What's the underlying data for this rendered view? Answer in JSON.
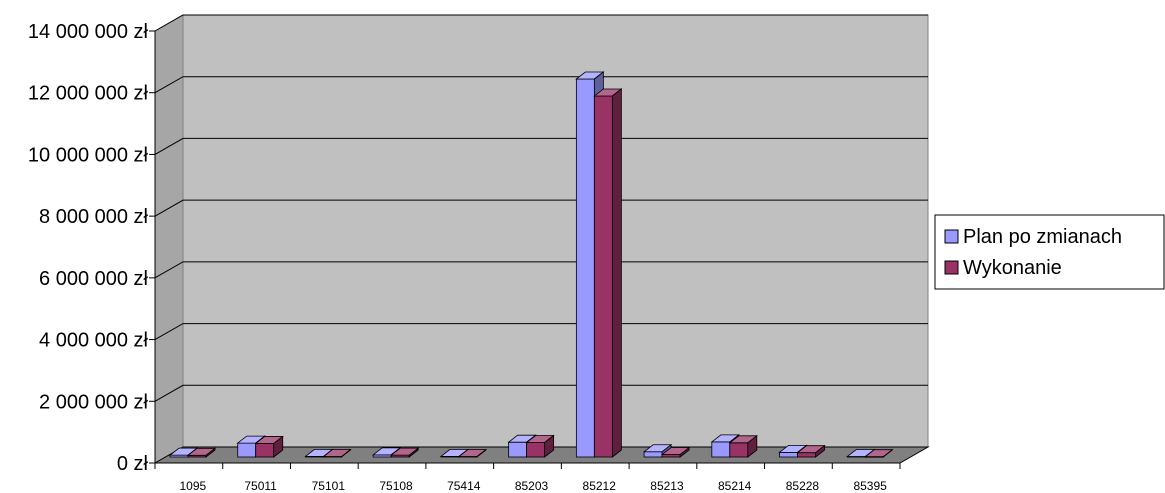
{
  "chart_data": {
    "type": "bar",
    "categories": [
      "1095",
      "75011",
      "75101",
      "75108",
      "75414",
      "85203",
      "85212",
      "85213",
      "85214",
      "85228",
      "85395"
    ],
    "series": [
      {
        "name": "Plan po zmianach",
        "color": "#9999ff",
        "values": [
          60000,
          450000,
          20000,
          70000,
          20000,
          480000,
          12250000,
          170000,
          490000,
          150000,
          15000
        ]
      },
      {
        "name": "Wykonanie",
        "color": "#993366",
        "values": [
          55000,
          440000,
          15000,
          60000,
          15000,
          470000,
          11700000,
          80000,
          460000,
          140000,
          10000
        ]
      }
    ],
    "y_ticks": [
      "0 zł",
      "2 000 000 zł",
      "4 000 000 zł",
      "6 000 000 zł",
      "8 000 000 zł",
      "10 000 000 zł",
      "12 000 000 zł",
      "14 000 000 zł"
    ],
    "ylim": [
      0,
      14000000
    ],
    "grid": true,
    "legend": "right",
    "wall_color": "#c0c0c0",
    "floor_color": "#808080"
  }
}
